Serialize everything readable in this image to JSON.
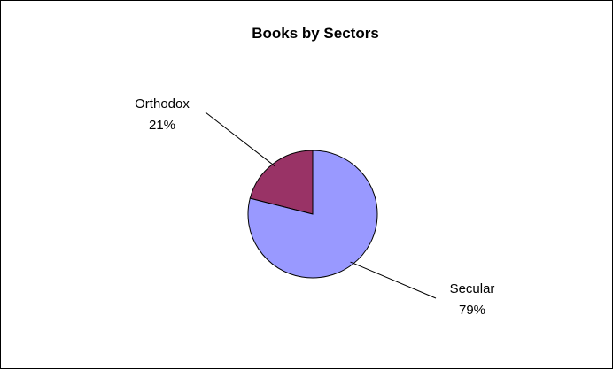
{
  "chart_data": {
    "type": "pie",
    "title": "Books by Sectors",
    "slices": [
      {
        "label": "Orthodox",
        "value": 21,
        "value_label": "21%",
        "color": "#993366"
      },
      {
        "label": "Secular",
        "value": 79,
        "value_label": "79%",
        "color": "#9999ff"
      }
    ],
    "legend": "none",
    "labels_outside_with_leader_lines": true
  }
}
